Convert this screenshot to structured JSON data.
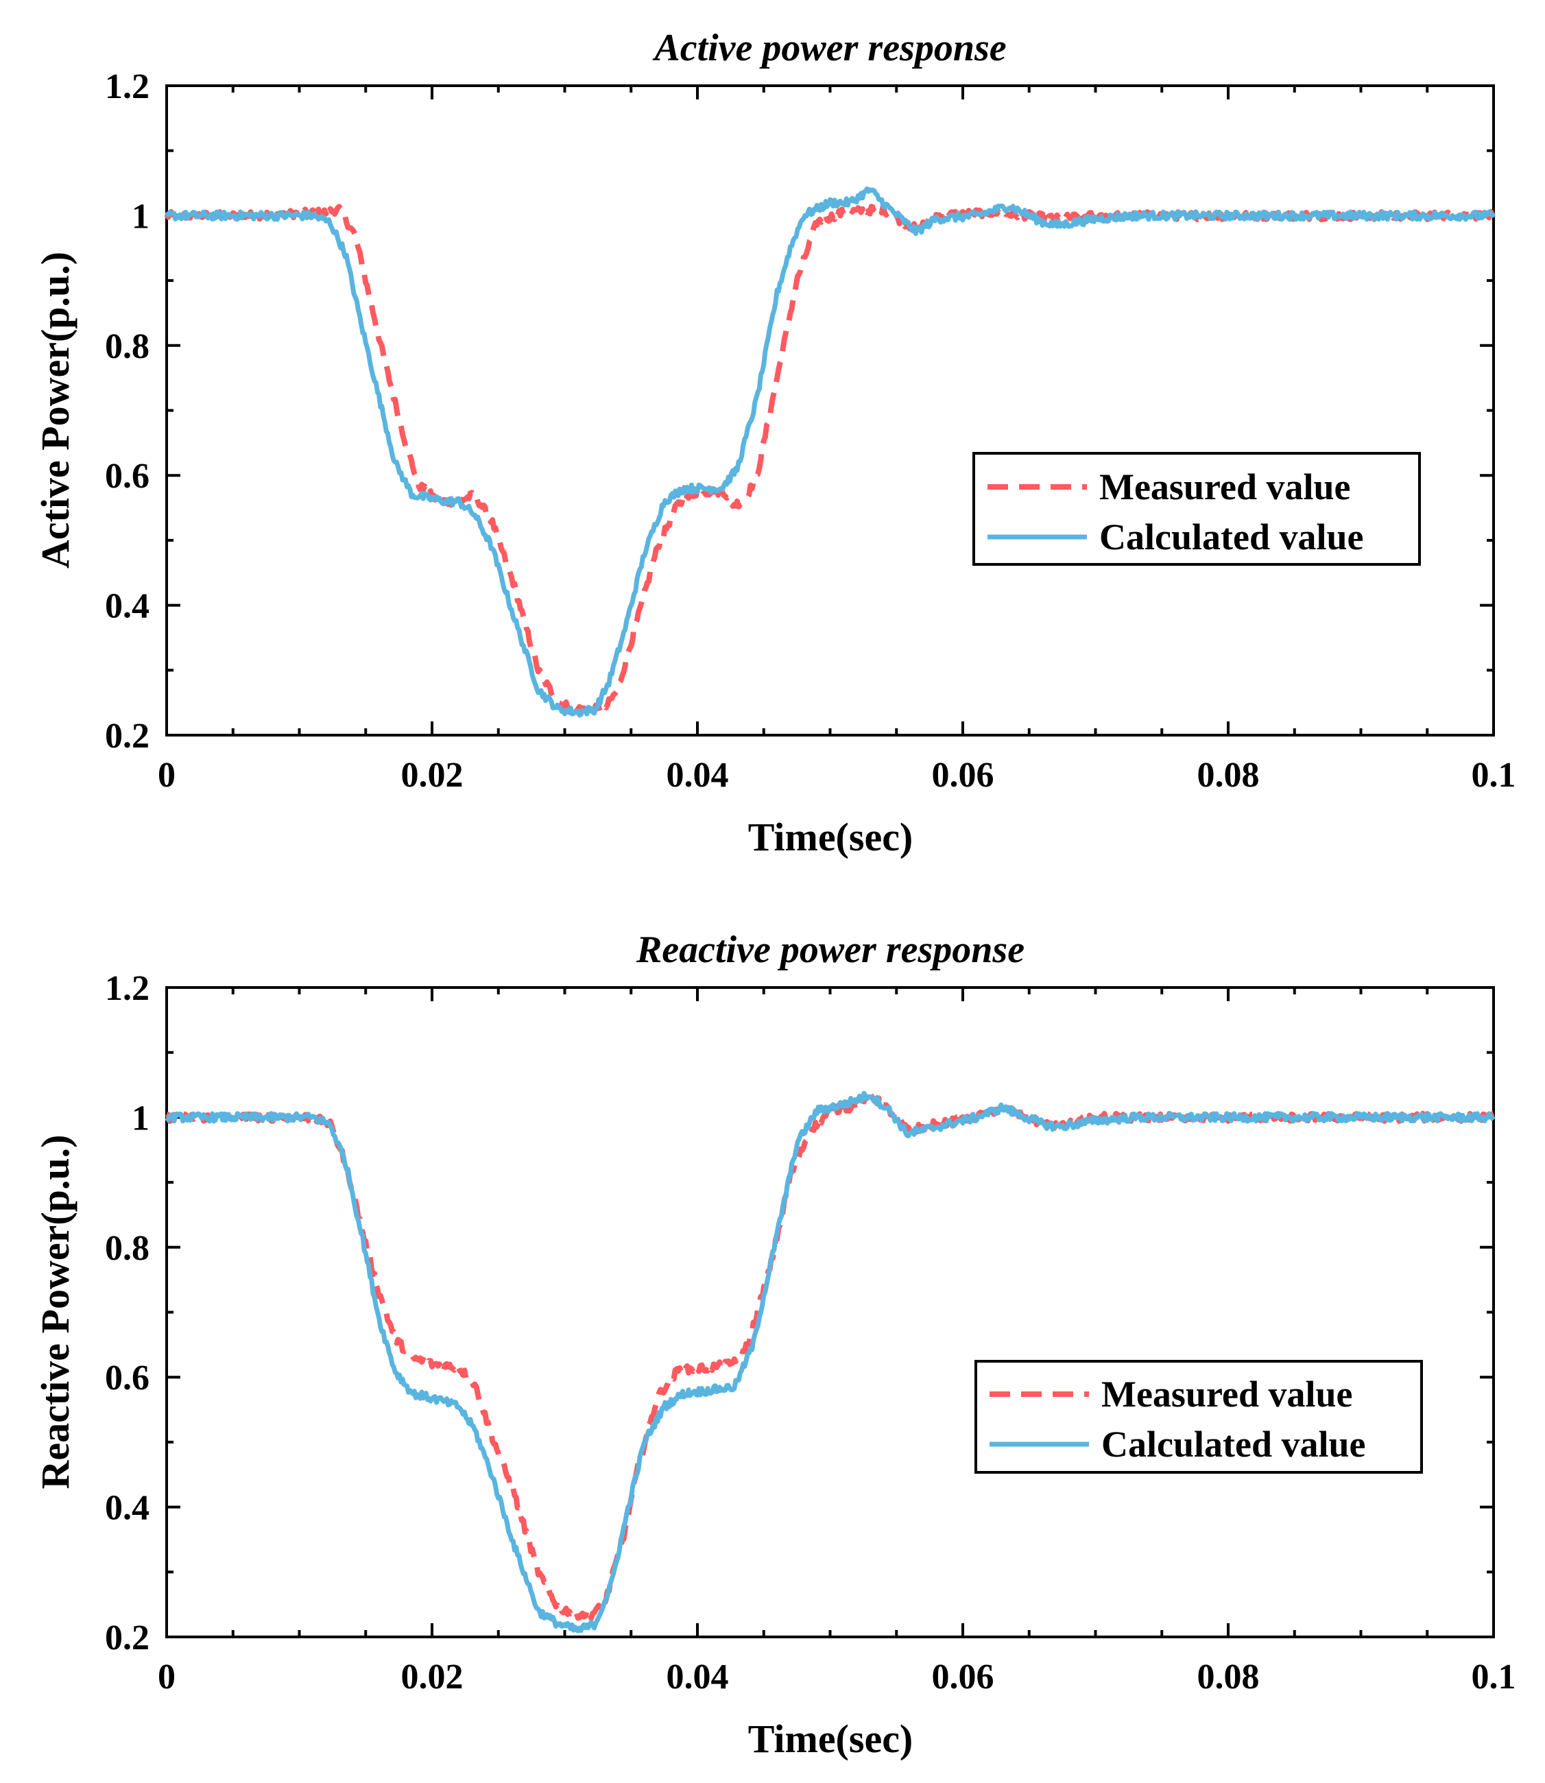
{
  "colors": {
    "measured": "#ff5a5f",
    "calculated": "#5ab4e0",
    "axis": "#000000",
    "background": "#ffffff"
  },
  "chart_data": [
    {
      "type": "line",
      "title": "Active power response",
      "xlabel": "Time(sec)",
      "ylabel": "Active Power(p.u.)",
      "xlim": [
        0,
        0.1
      ],
      "ylim": [
        0.2,
        1.2
      ],
      "xticks": [
        0,
        0.02,
        0.04,
        0.06,
        0.08,
        0.1
      ],
      "xtick_labels": [
        "0",
        "0.02",
        "0.04",
        "0.06",
        "0.08",
        "0.1"
      ],
      "yticks": [
        0.2,
        0.4,
        0.6,
        0.8,
        1,
        1.2
      ],
      "ytick_labels": [
        "0.2",
        "0.4",
        "0.6",
        "0.8",
        "1",
        "1.2"
      ],
      "legend": {
        "position": "center-right",
        "entries": [
          "Measured value",
          "Calculated value"
        ]
      },
      "series": [
        {
          "name": "Measured value",
          "style": "dashed",
          "points": [
            [
              0,
              1.0
            ],
            [
              0.006,
              1.0
            ],
            [
              0.012,
              1.005
            ],
            [
              0.013,
              1.01
            ],
            [
              0.0142,
              0.97
            ],
            [
              0.015,
              0.9
            ],
            [
              0.0165,
              0.77
            ],
            [
              0.018,
              0.65
            ],
            [
              0.019,
              0.585
            ],
            [
              0.0205,
              0.56
            ],
            [
              0.022,
              0.56
            ],
            [
              0.0232,
              0.57
            ],
            [
              0.0245,
              0.53
            ],
            [
              0.0262,
              0.43
            ],
            [
              0.028,
              0.3
            ],
            [
              0.0295,
              0.25
            ],
            [
              0.031,
              0.24
            ],
            [
              0.033,
              0.24
            ],
            [
              0.034,
              0.27
            ],
            [
              0.0355,
              0.38
            ],
            [
              0.037,
              0.49
            ],
            [
              0.0385,
              0.555
            ],
            [
              0.04,
              0.575
            ],
            [
              0.042,
              0.575
            ],
            [
              0.0427,
              0.555
            ],
            [
              0.0435,
              0.56
            ],
            [
              0.0445,
              0.6
            ],
            [
              0.0455,
              0.7
            ],
            [
              0.0475,
              0.9
            ],
            [
              0.049,
              0.99
            ],
            [
              0.051,
              1.005
            ],
            [
              0.054,
              1.01
            ],
            [
              0.0555,
              0.99
            ],
            [
              0.0565,
              0.98
            ],
            [
              0.058,
              1.0
            ],
            [
              0.062,
              1.005
            ],
            [
              0.065,
              1.0
            ],
            [
              0.067,
              0.995
            ],
            [
              0.07,
              1.0
            ],
            [
              0.1,
              1.0
            ]
          ]
        },
        {
          "name": "Calculated value",
          "style": "solid",
          "points": [
            [
              0,
              1.0
            ],
            [
              0.006,
              1.0
            ],
            [
              0.011,
              1.0
            ],
            [
              0.0123,
              0.99
            ],
            [
              0.0135,
              0.94
            ],
            [
              0.0147,
              0.83
            ],
            [
              0.016,
              0.72
            ],
            [
              0.0172,
              0.62
            ],
            [
              0.0185,
              0.57
            ],
            [
              0.021,
              0.56
            ],
            [
              0.022,
              0.56
            ],
            [
              0.0232,
              0.54
            ],
            [
              0.0245,
              0.49
            ],
            [
              0.0262,
              0.38
            ],
            [
              0.028,
              0.27
            ],
            [
              0.0295,
              0.24
            ],
            [
              0.031,
              0.235
            ],
            [
              0.0323,
              0.24
            ],
            [
              0.0333,
              0.28
            ],
            [
              0.0345,
              0.36
            ],
            [
              0.036,
              0.48
            ],
            [
              0.0375,
              0.56
            ],
            [
              0.039,
              0.58
            ],
            [
              0.0418,
              0.58
            ],
            [
              0.043,
              0.61
            ],
            [
              0.0445,
              0.72
            ],
            [
              0.046,
              0.88
            ],
            [
              0.047,
              0.95
            ],
            [
              0.048,
              1.0
            ],
            [
              0.05,
              1.02
            ],
            [
              0.0515,
              1.02
            ],
            [
              0.053,
              1.04
            ],
            [
              0.0545,
              1.01
            ],
            [
              0.0565,
              0.975
            ],
            [
              0.058,
              0.995
            ],
            [
              0.061,
              1.0
            ],
            [
              0.0635,
              1.015
            ],
            [
              0.066,
              0.99
            ],
            [
              0.0672,
              0.985
            ],
            [
              0.07,
              0.995
            ],
            [
              0.073,
              1.0
            ],
            [
              0.1,
              1.0
            ]
          ]
        }
      ]
    },
    {
      "type": "line",
      "title": "Reactive power response",
      "xlabel": "Time(sec)",
      "ylabel": "Reactive Power(p.u.)",
      "xlim": [
        0,
        0.1
      ],
      "ylim": [
        0.2,
        1.2
      ],
      "xticks": [
        0,
        0.02,
        0.04,
        0.06,
        0.08,
        0.1
      ],
      "xtick_labels": [
        "0",
        "0.02",
        "0.04",
        "0.06",
        "0.08",
        "0.1"
      ],
      "yticks": [
        0.2,
        0.4,
        0.6,
        0.8,
        1,
        1.2
      ],
      "ytick_labels": [
        "0.2",
        "0.4",
        "0.6",
        "0.8",
        "1",
        "1.2"
      ],
      "legend": {
        "position": "center-right",
        "entries": [
          "Measured value",
          "Calculated value"
        ]
      },
      "series": [
        {
          "name": "Measured value",
          "style": "dashed",
          "points": [
            [
              0,
              1.0
            ],
            [
              0.006,
              1.0
            ],
            [
              0.011,
              1.0
            ],
            [
              0.0123,
              0.99
            ],
            [
              0.0135,
              0.93
            ],
            [
              0.0148,
              0.82
            ],
            [
              0.016,
              0.73
            ],
            [
              0.0172,
              0.66
            ],
            [
              0.0185,
              0.63
            ],
            [
              0.02,
              0.62
            ],
            [
              0.022,
              0.615
            ],
            [
              0.0232,
              0.59
            ],
            [
              0.0245,
              0.51
            ],
            [
              0.0262,
              0.42
            ],
            [
              0.028,
              0.3
            ],
            [
              0.0295,
              0.245
            ],
            [
              0.031,
              0.235
            ],
            [
              0.032,
              0.235
            ],
            [
              0.033,
              0.25
            ],
            [
              0.0345,
              0.36
            ],
            [
              0.0355,
              0.46
            ],
            [
              0.037,
              0.57
            ],
            [
              0.0385,
              0.61
            ],
            [
              0.041,
              0.615
            ],
            [
              0.0425,
              0.62
            ],
            [
              0.0438,
              0.65
            ],
            [
              0.0455,
              0.77
            ],
            [
              0.047,
              0.91
            ],
            [
              0.0485,
              0.98
            ],
            [
              0.05,
              1.01
            ],
            [
              0.0515,
              1.015
            ],
            [
              0.053,
              1.035
            ],
            [
              0.0545,
              1.01
            ],
            [
              0.0558,
              0.98
            ],
            [
              0.058,
              0.99
            ],
            [
              0.061,
              1.0
            ],
            [
              0.063,
              1.015
            ],
            [
              0.066,
              0.99
            ],
            [
              0.0672,
              0.985
            ],
            [
              0.07,
              1.0
            ],
            [
              0.1,
              1.0
            ]
          ]
        },
        {
          "name": "Calculated value",
          "style": "solid",
          "points": [
            [
              0,
              1.0
            ],
            [
              0.006,
              1.0
            ],
            [
              0.011,
              1.0
            ],
            [
              0.0123,
              0.99
            ],
            [
              0.0135,
              0.93
            ],
            [
              0.0148,
              0.81
            ],
            [
              0.016,
              0.69
            ],
            [
              0.0172,
              0.61
            ],
            [
              0.0185,
              0.575
            ],
            [
              0.0205,
              0.565
            ],
            [
              0.022,
              0.555
            ],
            [
              0.0232,
              0.52
            ],
            [
              0.0245,
              0.45
            ],
            [
              0.0262,
              0.34
            ],
            [
              0.028,
              0.24
            ],
            [
              0.0295,
              0.22
            ],
            [
              0.031,
              0.21
            ],
            [
              0.0323,
              0.22
            ],
            [
              0.0335,
              0.28
            ],
            [
              0.0348,
              0.4
            ],
            [
              0.036,
              0.5
            ],
            [
              0.0375,
              0.555
            ],
            [
              0.039,
              0.575
            ],
            [
              0.041,
              0.58
            ],
            [
              0.0428,
              0.585
            ],
            [
              0.0442,
              0.65
            ],
            [
              0.046,
              0.82
            ],
            [
              0.0475,
              0.96
            ],
            [
              0.049,
              1.01
            ],
            [
              0.051,
              1.02
            ],
            [
              0.053,
              1.035
            ],
            [
              0.0545,
              1.01
            ],
            [
              0.0558,
              0.975
            ],
            [
              0.058,
              0.985
            ],
            [
              0.061,
              1.0
            ],
            [
              0.063,
              1.015
            ],
            [
              0.066,
              0.99
            ],
            [
              0.0672,
              0.985
            ],
            [
              0.07,
              0.995
            ],
            [
              0.073,
              1.0
            ],
            [
              0.1,
              1.0
            ]
          ]
        }
      ]
    }
  ]
}
